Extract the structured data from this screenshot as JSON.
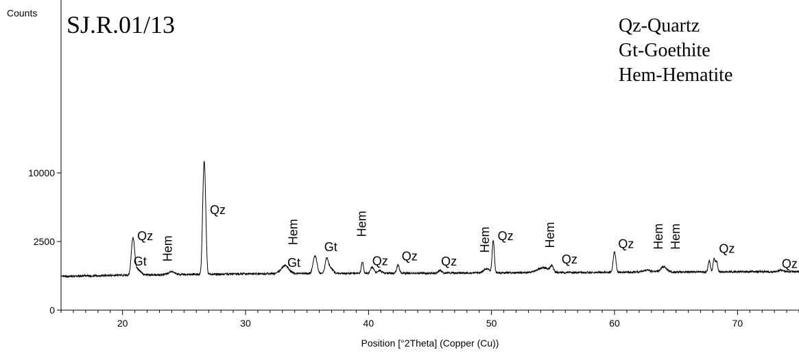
{
  "chart_data": {
    "type": "line",
    "title": "SJ.R.01/13",
    "xlabel": "Position [°2Theta] (Copper (Cu))",
    "ylabel": "Counts",
    "xlim": [
      15,
      75
    ],
    "ylim_note": "square-root scale",
    "y_ticks": [
      {
        "value": 0,
        "label": "0"
      },
      {
        "value": 2500,
        "label": "2500"
      },
      {
        "value": 10000,
        "label": "10000"
      }
    ],
    "x_ticks": [
      {
        "value": 20,
        "label": "20"
      },
      {
        "value": 30,
        "label": "30"
      },
      {
        "value": 40,
        "label": "40"
      },
      {
        "value": 50,
        "label": "50"
      },
      {
        "value": 60,
        "label": "60"
      },
      {
        "value": 70,
        "label": "70"
      }
    ],
    "legend": [
      "Qz-Quartz",
      "Gt-Goethite",
      "Hem-Hematite"
    ],
    "legend_position": "top-right",
    "background_counts": [
      [
        15,
        600
      ],
      [
        20,
        650
      ],
      [
        30,
        700
      ],
      [
        40,
        720
      ],
      [
        50,
        740
      ],
      [
        60,
        760
      ],
      [
        70,
        780
      ],
      [
        75,
        790
      ]
    ],
    "peaks": [
      {
        "x": 20.85,
        "y": 2700,
        "w": 0.12
      },
      {
        "x": 21.2,
        "y": 900,
        "w": 0.25
      },
      {
        "x": 24.0,
        "y": 780,
        "w": 0.25
      },
      {
        "x": 26.64,
        "y": 11800,
        "w": 0.1
      },
      {
        "x": 33.2,
        "y": 1050,
        "w": 0.3
      },
      {
        "x": 35.65,
        "y": 1550,
        "w": 0.15
      },
      {
        "x": 36.6,
        "y": 1400,
        "w": 0.12
      },
      {
        "x": 36.9,
        "y": 950,
        "w": 0.2
      },
      {
        "x": 39.5,
        "y": 1250,
        "w": 0.08
      },
      {
        "x": 40.3,
        "y": 1000,
        "w": 0.12
      },
      {
        "x": 40.9,
        "y": 850,
        "w": 0.15
      },
      {
        "x": 42.4,
        "y": 1080,
        "w": 0.1
      },
      {
        "x": 45.8,
        "y": 850,
        "w": 0.12
      },
      {
        "x": 49.6,
        "y": 900,
        "w": 0.25
      },
      {
        "x": 50.14,
        "y": 2600,
        "w": 0.08
      },
      {
        "x": 54.2,
        "y": 960,
        "w": 0.45
      },
      {
        "x": 54.9,
        "y": 1000,
        "w": 0.12
      },
      {
        "x": 60.0,
        "y": 1800,
        "w": 0.1
      },
      {
        "x": 62.6,
        "y": 850,
        "w": 0.35
      },
      {
        "x": 64.0,
        "y": 1000,
        "w": 0.25
      },
      {
        "x": 67.7,
        "y": 1300,
        "w": 0.08
      },
      {
        "x": 68.1,
        "y": 1400,
        "w": 0.08
      },
      {
        "x": 68.3,
        "y": 1250,
        "w": 0.08
      },
      {
        "x": 73.5,
        "y": 860,
        "w": 0.15
      }
    ],
    "peak_labels": [
      {
        "text": "Qz",
        "x": 21.2,
        "y": 2600,
        "orient": "h"
      },
      {
        "text": "Gt",
        "x": 20.9,
        "y": 1050,
        "orient": "h"
      },
      {
        "text": "Hem",
        "x": 24.0,
        "y": 1250,
        "orient": "v"
      },
      {
        "text": "Qz",
        "x": 27.1,
        "y": 4900,
        "orient": "h"
      },
      {
        "text": "Hem",
        "x": 34.2,
        "y": 2250,
        "orient": "v"
      },
      {
        "text": "Gt",
        "x": 33.4,
        "y": 1000,
        "orient": "h"
      },
      {
        "text": "Gt",
        "x": 36.4,
        "y": 1850,
        "orient": "h"
      },
      {
        "text": "Hem",
        "x": 39.8,
        "y": 2850,
        "orient": "v"
      },
      {
        "text": "Qz",
        "x": 40.3,
        "y": 1080,
        "orient": "h"
      },
      {
        "text": "Qz",
        "x": 42.7,
        "y": 1320,
        "orient": "h"
      },
      {
        "text": "Qz",
        "x": 45.9,
        "y": 1050,
        "orient": "h"
      },
      {
        "text": "Hem",
        "x": 49.8,
        "y": 1750,
        "orient": "v"
      },
      {
        "text": "Qz",
        "x": 50.5,
        "y": 2600,
        "orient": "h"
      },
      {
        "text": "Hem",
        "x": 55.1,
        "y": 2050,
        "orient": "v"
      },
      {
        "text": "Qz",
        "x": 55.7,
        "y": 1150,
        "orient": "h"
      },
      {
        "text": "Qz",
        "x": 60.3,
        "y": 2050,
        "orient": "h"
      },
      {
        "text": "Hem",
        "x": 63.9,
        "y": 1950,
        "orient": "v"
      },
      {
        "text": "Hem",
        "x": 65.3,
        "y": 1950,
        "orient": "v"
      },
      {
        "text": "Qz",
        "x": 68.5,
        "y": 1750,
        "orient": "h"
      },
      {
        "text": "Qz",
        "x": 73.6,
        "y": 950,
        "orient": "h"
      }
    ],
    "grid": false,
    "colors": {
      "line": "#000000",
      "axis": "#000000",
      "background": "#ffffff"
    }
  }
}
